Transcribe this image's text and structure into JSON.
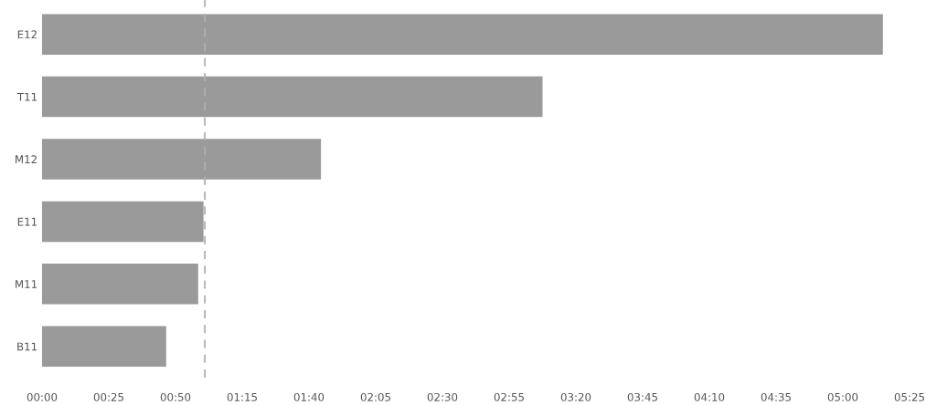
{
  "chart_data": {
    "type": "bar",
    "orientation": "horizontal",
    "categories": [
      "E12",
      "T11",
      "M12",
      "E11",
      "M11",
      "B11"
    ],
    "values": [
      315,
      187.5,
      104.5,
      60.5,
      58.5,
      46.5
    ],
    "color": "#9a9a9a",
    "xlim": [
      0,
      325
    ],
    "xticks": [
      {
        "value": 0,
        "label": "00:00"
      },
      {
        "value": 25,
        "label": "00:25"
      },
      {
        "value": 50,
        "label": "00:50"
      },
      {
        "value": 75,
        "label": "01:15"
      },
      {
        "value": 100,
        "label": "01:40"
      },
      {
        "value": 125,
        "label": "02:05"
      },
      {
        "value": 150,
        "label": "02:30"
      },
      {
        "value": 175,
        "label": "02:55"
      },
      {
        "value": 200,
        "label": "03:20"
      },
      {
        "value": 225,
        "label": "03:45"
      },
      {
        "value": 250,
        "label": "04:10"
      },
      {
        "value": 275,
        "label": "04:35"
      },
      {
        "value": 300,
        "label": "05:00"
      },
      {
        "value": 325,
        "label": "05:25"
      }
    ],
    "ref_lines": [
      {
        "axis": "x",
        "value": 61,
        "color": "#b0b0b0",
        "line_style": "dashed"
      }
    ],
    "grid": false
  }
}
